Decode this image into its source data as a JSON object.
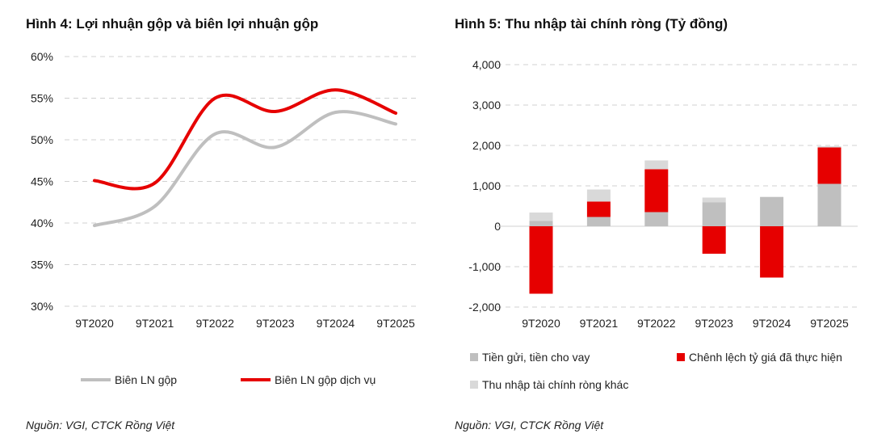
{
  "chart_data": [
    {
      "type": "line",
      "title": "Hình 4: Lợi nhuận gộp và biên lợi nhuận gộp",
      "categories": [
        "9T2020",
        "9T2021",
        "9T2022",
        "9T2023",
        "9T2024",
        "9T2025"
      ],
      "ylim": [
        30,
        60
      ],
      "yticks": [
        "30%",
        "35%",
        "40%",
        "45%",
        "50%",
        "55%",
        "60%"
      ],
      "grid": true,
      "legend": "bottom",
      "series": [
        {
          "name": "Biên LN gộp",
          "color": "#bfbfbf",
          "values": [
            39.7,
            42.0,
            50.7,
            49.1,
            53.3,
            51.9
          ]
        },
        {
          "name": "Biên LN gộp dịch vụ",
          "color": "#e60000",
          "values": [
            45.1,
            44.8,
            55.0,
            53.4,
            56.0,
            53.2
          ]
        }
      ],
      "source": "Nguồn: VGI, CTCK Rồng Việt"
    },
    {
      "type": "bar",
      "stacked": true,
      "title": "Hình 5: Thu nhập tài chính ròng (Tỷ đồng)",
      "categories": [
        "9T2020",
        "9T2021",
        "9T2022",
        "9T2023",
        "9T2024",
        "9T2025"
      ],
      "ylim": [
        -2000,
        4000
      ],
      "yticks": [
        "-2,000",
        "-1,000",
        "0",
        "1,000",
        "2,000",
        "3,000",
        "4,000"
      ],
      "grid": true,
      "legend": "bottom",
      "series": [
        {
          "name": "Tiền gửi, tiền cho vay",
          "color": "#bfbfbf",
          "values": [
            130,
            230,
            350,
            590,
            720,
            1050
          ]
        },
        {
          "name": "Chênh lệch tỷ giá đã thực hiện",
          "color": "#e60000",
          "values": [
            -1670,
            380,
            1060,
            -680,
            -1270,
            900
          ]
        },
        {
          "name": "Thu nhập tài chính ròng khác",
          "color": "#d9d9d9",
          "values": [
            210,
            300,
            220,
            120,
            10,
            30
          ]
        }
      ],
      "source": "Nguồn: VGI, CTCK Rồng Việt"
    }
  ]
}
